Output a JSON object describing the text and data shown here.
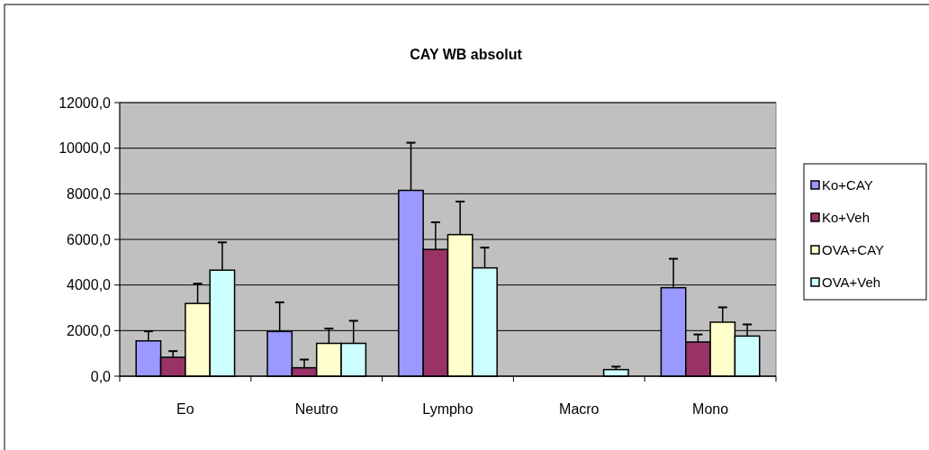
{
  "chart_data": {
    "type": "bar",
    "title": "CAY WB absolut",
    "categories": [
      "Eo",
      "Neutro",
      "Lympho",
      "Macro",
      "Mono"
    ],
    "series": [
      {
        "name": "Ko+CAY",
        "color": "#9999ff",
        "values": [
          1550,
          1960,
          8150,
          0,
          3880
        ],
        "errors": [
          [
            1550,
            1970
          ],
          [
            1960,
            3240
          ],
          [
            8150,
            10240
          ],
          null,
          [
            3880,
            5150
          ]
        ]
      },
      {
        "name": "Ko+Veh",
        "color": "#993366",
        "values": [
          830,
          370,
          5560,
          0,
          1500
        ],
        "errors": [
          [
            830,
            1100
          ],
          [
            370,
            730
          ],
          [
            5560,
            6750
          ],
          null,
          [
            1500,
            1830
          ]
        ]
      },
      {
        "name": "OVA+CAY",
        "color": "#ffffcc",
        "values": [
          3190,
          1440,
          6210,
          0,
          2370
        ],
        "errors": [
          [
            3190,
            4060
          ],
          [
            1440,
            2090
          ],
          [
            6210,
            7660
          ],
          null,
          [
            2370,
            3020
          ]
        ]
      },
      {
        "name": "OVA+Veh",
        "color": "#ccffff",
        "values": [
          4650,
          1440,
          4750,
          290,
          1760
        ],
        "errors": [
          [
            4650,
            5870
          ],
          [
            1440,
            2430
          ],
          [
            4750,
            5640
          ],
          [
            290,
            420
          ],
          [
            1760,
            2270
          ]
        ]
      }
    ],
    "ylim": [
      0,
      12000
    ],
    "yticks": [
      {
        "value": 0,
        "label": "0,0"
      },
      {
        "value": 2000,
        "label": "2000,0"
      },
      {
        "value": 4000,
        "label": "4000,0"
      },
      {
        "value": 6000,
        "label": "6000,0"
      },
      {
        "value": 8000,
        "label": "8000,0"
      },
      {
        "value": 10000,
        "label": "10000,0"
      },
      {
        "value": 12000,
        "label": "12000,0"
      }
    ],
    "grid": "y",
    "legend": "right"
  }
}
